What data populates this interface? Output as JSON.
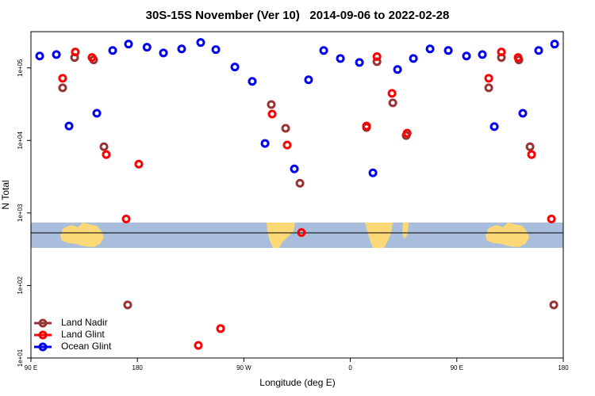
{
  "chart_data": {
    "type": "scatter",
    "title": "30S-15S November (Ver 10)   2014-09-06 to 2022-02-28",
    "x_label": "Longitude (deg E)",
    "y_label": "N Total",
    "xlim": [
      90,
      540
    ],
    "xticks": [
      {
        "value": 90,
        "label": "90 E"
      },
      {
        "value": 180,
        "label": "180"
      },
      {
        "value": 270,
        "label": "90 W"
      },
      {
        "value": 360,
        "label": "0"
      },
      {
        "value": 450,
        "label": "90 E"
      },
      {
        "value": 540,
        "label": "180"
      }
    ],
    "ylim": [
      10,
      316000
    ],
    "log_y": true,
    "yticks": [
      {
        "value": 10,
        "label": "1e+01"
      },
      {
        "value": 100,
        "label": "1e+02"
      },
      {
        "value": 1000,
        "label": "1e+03"
      },
      {
        "value": 10000,
        "label": "1e+04"
      },
      {
        "value": 100000,
        "label": "1e+05"
      }
    ],
    "legend": "bottom-left",
    "series": [
      {
        "name": "Land Nadir",
        "color": "#993333",
        "x": [
          116.8,
          126.9,
          143,
          151.7,
          171.8,
          293.2,
          305.3,
          317.4,
          373.7,
          382.5,
          395.9,
          407.2,
          477,
          487.7,
          502.5,
          511.9,
          532
        ],
        "values": [
          53200,
          139000,
          129000,
          8200,
          54,
          31300,
          14700,
          2570,
          15100,
          122000,
          33000,
          11700,
          53200,
          139000,
          129000,
          8200,
          54
        ]
      },
      {
        "name": "Land Glint",
        "color": "#ff0000",
        "x": [
          116.8,
          127.5,
          141.6,
          153.7,
          170.5,
          181.2,
          231.5,
          250.3,
          293.9,
          306.6,
          318.7,
          373.7,
          382.5,
          395.2,
          408,
          477,
          487.7,
          501.8,
          513.2,
          530
        ],
        "values": [
          72000,
          166000,
          139000,
          6380,
          826,
          4710,
          14.9,
          25.4,
          23100,
          8630,
          537,
          15800,
          143000,
          44600,
          12600,
          72000,
          166000,
          139000,
          6380,
          826
        ]
      },
      {
        "name": "Ocean Glint",
        "color": "#0000ee",
        "x": [
          97.4,
          111.5,
          122.2,
          145.7,
          159.1,
          172.5,
          188.1,
          202,
          217.4,
          233.5,
          246.3,
          262.4,
          277.1,
          287.9,
          312.7,
          324.7,
          337.5,
          351.6,
          367.7,
          379.1,
          399.9,
          413.3,
          427.4,
          442.8,
          458.2,
          471.6,
          481.7,
          505.8,
          519.2,
          532.7
        ],
        "values": [
          146000,
          153000,
          15800,
          23700,
          174000,
          213000,
          193000,
          161000,
          183000,
          224000,
          179000,
          103000,
          65200,
          9080,
          4050,
          68500,
          174000,
          135000,
          119000,
          3570,
          95000,
          135000,
          183000,
          174000,
          146000,
          153000,
          15500,
          23700,
          174000,
          213000
        ]
      }
    ]
  }
}
